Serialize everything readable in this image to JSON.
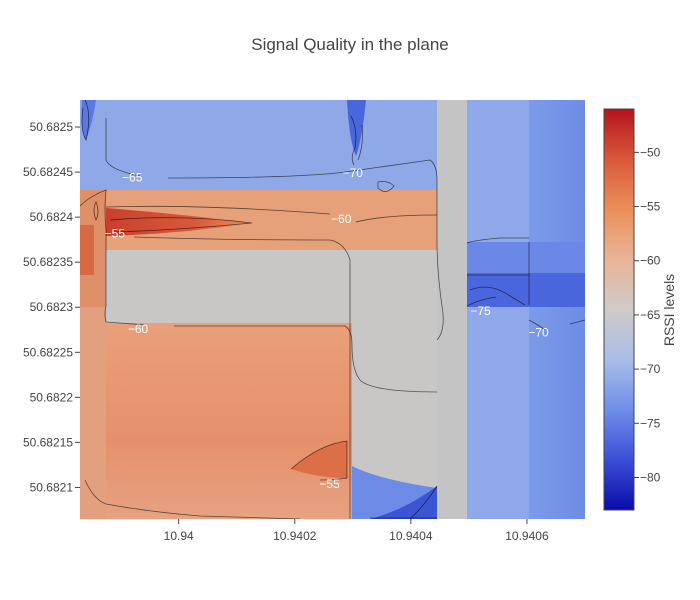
{
  "chart_data": {
    "type": "heatmap",
    "subtype": "contour",
    "title": "Signal Quality in the plane",
    "xlabel": "",
    "ylabel": "",
    "x_tick_labels": [
      "10.94",
      "10.9402",
      "10.9404",
      "10.9406"
    ],
    "x_ticks": [
      10.94,
      10.9402,
      10.9404,
      10.9406
    ],
    "xlim": [
      10.93983,
      10.9407
    ],
    "y_tick_labels": [
      "50.6825",
      "50.68245",
      "50.6824",
      "50.68235",
      "50.6823",
      "50.68225",
      "50.6822",
      "50.68215",
      "50.6821"
    ],
    "y_ticks": [
      50.6825,
      50.68245,
      50.6824,
      50.68235,
      50.6823,
      50.68225,
      50.6822,
      50.68215,
      50.6821
    ],
    "ylim": [
      50.682065,
      50.68253
    ],
    "colorbar": {
      "title": "RSSI levels",
      "tick_labels": [
        "−50",
        "−55",
        "−60",
        "−65",
        "−70",
        "−75",
        "−80"
      ],
      "ticks": [
        -50,
        -55,
        -60,
        -65,
        -70,
        -75,
        -80
      ],
      "range": [
        -83,
        -46
      ],
      "colorscale": [
        "#0a0aa8",
        "#3b4fd6",
        "#6f8ee8",
        "#a9bde8",
        "#d0cbc8",
        "#e9b497",
        "#eb8f5a",
        "#d9583a",
        "#b4141e"
      ]
    },
    "contour_levels": [
      -75,
      -70,
      -65,
      -60,
      -55
    ],
    "contour_labels": [
      {
        "text": "−65",
        "x": 10.93992,
        "y": 50.682444
      },
      {
        "text": "−70",
        "x": 10.9403,
        "y": 50.682449
      },
      {
        "text": "−60",
        "x": 10.94028,
        "y": 50.682398
      },
      {
        "text": "−55",
        "x": 10.93989,
        "y": 50.682382
      },
      {
        "text": "−60",
        "x": 10.93993,
        "y": 50.682276
      },
      {
        "text": "−75",
        "x": 10.94052,
        "y": 50.682296
      },
      {
        "text": "−70",
        "x": 10.94062,
        "y": 50.682272
      },
      {
        "text": "−55",
        "x": 10.94026,
        "y": 50.682104
      }
    ]
  }
}
